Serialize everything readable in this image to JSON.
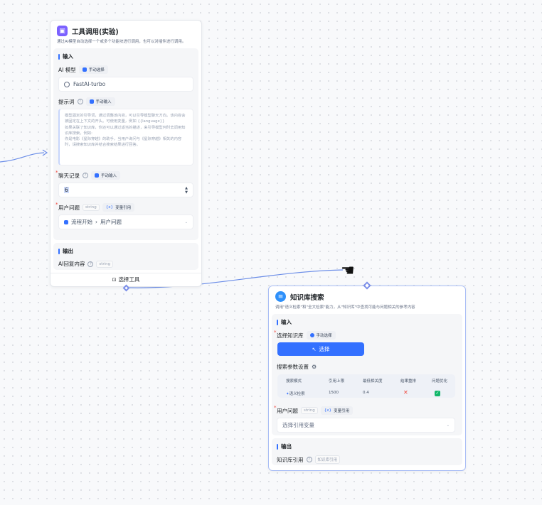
{
  "tool_node": {
    "title": "工具调用(实验)",
    "description": "通过AI模型自动选择一个或多个功能块进行调用，也可以对插件进行调用。",
    "input_label": "输入",
    "ai_model_label": "AI 模型",
    "ai_model_tag": "手动选择",
    "model_value": "FastAI-turbo",
    "prompt_label": "提示词",
    "prompt_tag": "手动输入",
    "prompt_placeholder": "模型固定的引导词，通过调整该内容，可以引导模型聊天方向。该内容会被固定在上下文的开头。可使用变量，例如 {{language}}\n如果关联了知识库，你还可以通过适当的描述，来引导模型何时去调用知识库搜索。例如:\n你是电影《星际穿越》的助手，当用户询问与《星际穿越》相关的内容时，请搜索知识库并结合搜索结果进行回答。",
    "history_label": "聊天记录",
    "history_tag": "手动输入",
    "history_value": "6",
    "question_label": "用户问题",
    "question_type": "string",
    "question_tag": "变量引用",
    "question_ref_start": "流程开始",
    "question_ref_sep": "›",
    "question_ref_end": "用户问题",
    "output_label": "输出",
    "output_name": "AI回复内容",
    "output_type": "string",
    "footer_label": "选择工具"
  },
  "kb_node": {
    "title": "知识库搜索",
    "description": "调用\"语义检索\"和\"全文检索\"能力，从\"知识库\"中查找可能与问题相关的参考内容",
    "input_label": "输入",
    "kb_label": "选择知识库",
    "kb_tag": "手动选择",
    "select_button": "选择",
    "params_label": "搜索参数设置",
    "table_headers": [
      "搜索模式",
      "引用上限",
      "最低相关度",
      "结果重排",
      "问题优化"
    ],
    "table_row": {
      "mode": "语义检索",
      "limit": "1500",
      "similarity": "0.4",
      "rerank": "✕",
      "optimize": "✓"
    },
    "question_label": "用户问题",
    "question_type": "string",
    "question_tag": "变量引用",
    "question_placeholder": "选择引用变量",
    "output_label": "输出",
    "output_name": "知识库引用",
    "output_type": "知识库引用"
  },
  "colors": {
    "accent": "#3370ff",
    "tool_icon": "#7b61ff",
    "kb_icon": "#2e90fa",
    "error": "#f04438",
    "success": "#12b76a"
  }
}
